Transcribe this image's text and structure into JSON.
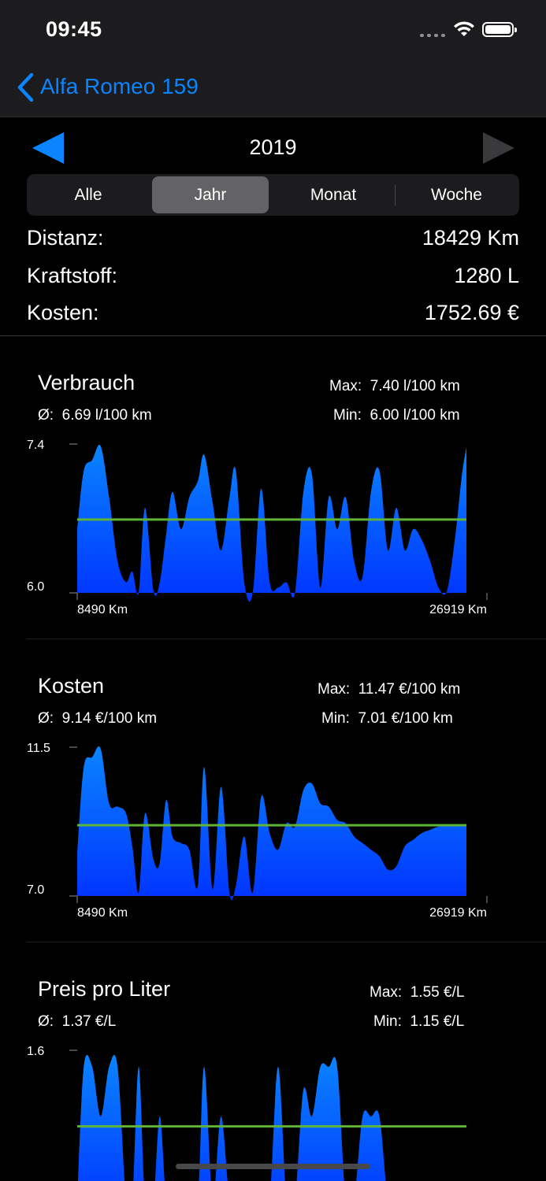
{
  "status_bar": {
    "time": "09:45"
  },
  "nav": {
    "back_label": "Alfa Romeo 159"
  },
  "period": {
    "year": "2019"
  },
  "segments": [
    "Alle",
    "Jahr",
    "Monat",
    "Woche"
  ],
  "selected_segment": "Jahr",
  "summary": {
    "distance_label": "Distanz:",
    "distance_value": "18429 Km",
    "fuel_label": "Kraftstoff:",
    "fuel_value": "1280 L",
    "cost_label": "Kosten:",
    "cost_value": "1752.69 €"
  },
  "colors": {
    "accent": "#0a84ff",
    "area_top": "#0a84ff",
    "area_bottom": "#0033ff",
    "average_line": "#5fb336"
  },
  "chart_data": [
    {
      "type": "area",
      "title": "Verbrauch",
      "avg_label": "Ø:",
      "avg_value": "6.69 l/100 km",
      "max_label": "Max:",
      "max_value": "7.40 l/100 km",
      "min_label": "Min:",
      "min_value": "6.00 l/100 km",
      "ymax_label": "7.4",
      "ymin_label": "6.0",
      "xmin_label": "8490 Km",
      "xmax_label": "26919 Km",
      "ylim": [
        6.0,
        7.4
      ],
      "xlim": [
        8490,
        26919
      ],
      "average": 6.69,
      "x": [
        8490,
        8800,
        9200,
        9600,
        10000,
        10400,
        10800,
        11100,
        11400,
        11700,
        12100,
        12400,
        12700,
        13000,
        13400,
        13800,
        14200,
        14500,
        14900,
        15300,
        15700,
        16000,
        16400,
        16800,
        17200,
        17600,
        18000,
        18400,
        18800,
        19200,
        19600,
        20000,
        20400,
        20800,
        21200,
        21600,
        22000,
        22400,
        22800,
        23200,
        23600,
        24000,
        24400,
        24800,
        25200,
        25600,
        26000,
        26400,
        26700,
        26919
      ],
      "values": [
        6.6,
        7.15,
        7.25,
        7.38,
        6.9,
        6.3,
        6.1,
        6.2,
        6.0,
        6.8,
        6.02,
        6.1,
        6.55,
        6.95,
        6.6,
        6.9,
        7.05,
        7.3,
        6.85,
        6.4,
        6.9,
        7.15,
        6.1,
        6.0,
        6.98,
        6.1,
        6.05,
        6.1,
        6.0,
        6.95,
        7.12,
        6.05,
        6.9,
        6.6,
        6.9,
        6.3,
        6.15,
        6.95,
        7.15,
        6.4,
        6.8,
        6.4,
        6.6,
        6.5,
        6.3,
        6.05,
        6.02,
        6.55,
        7.1,
        7.37
      ]
    },
    {
      "type": "area",
      "title": "Kosten",
      "avg_label": "Ø:",
      "avg_value": "9.14 €/100 km",
      "max_label": "Max:",
      "max_value": "11.47 €/100 km",
      "min_label": "Min:",
      "min_value": "7.01 €/100 km",
      "ymax_label": "11.5",
      "ymin_label": "7.0",
      "xmin_label": "8490 Km",
      "xmax_label": "26919 Km",
      "ylim": [
        7.0,
        11.5
      ],
      "xlim": [
        8490,
        26919
      ],
      "average": 9.14,
      "x": [
        8490,
        8800,
        9200,
        9600,
        10000,
        10400,
        10800,
        11100,
        11400,
        11700,
        12100,
        12400,
        12700,
        13000,
        13400,
        13800,
        14200,
        14500,
        14900,
        15300,
        15700,
        16000,
        16400,
        16800,
        17200,
        17600,
        18000,
        18400,
        18800,
        19200,
        19600,
        20000,
        20400,
        20800,
        21200,
        21600,
        22000,
        22400,
        22800,
        23200,
        23600,
        24000,
        24400,
        24800,
        25200,
        25600,
        26000,
        26400,
        26700,
        26919
      ],
      "values": [
        8.3,
        10.9,
        11.2,
        11.45,
        9.8,
        9.7,
        9.5,
        8.5,
        7.1,
        9.5,
        8.1,
        8.0,
        9.9,
        8.8,
        8.6,
        8.4,
        7.3,
        10.9,
        7.2,
        10.3,
        7.1,
        7.3,
        8.8,
        7.1,
        10.0,
        8.9,
        8.4,
        9.2,
        9.1,
        10.2,
        10.4,
        9.8,
        9.7,
        9.3,
        9.2,
        8.8,
        8.6,
        8.4,
        8.2,
        7.8,
        7.9,
        8.5,
        8.7,
        8.9,
        9.0,
        9.1,
        9.12,
        9.13,
        9.14,
        9.15
      ]
    },
    {
      "type": "area",
      "title": "Preis pro Liter",
      "avg_label": "Ø:",
      "avg_value": "1.37 €/L",
      "max_label": "Max:",
      "max_value": "1.55 €/L",
      "min_label": "Min:",
      "min_value": "1.15 €/L",
      "ymax_label": "1.6",
      "ylim": [
        1.15,
        1.6
      ],
      "xlim": [
        8490,
        26919
      ],
      "average": 1.37,
      "x": [
        8490,
        8800,
        9200,
        9600,
        10000,
        10400,
        10800,
        11100,
        11400,
        11700,
        12100,
        12400,
        12700,
        13000,
        13400,
        13800,
        14200,
        14500,
        14900,
        15300,
        15700,
        16000,
        16400,
        16800,
        17200,
        17600,
        18000,
        18400,
        18800,
        19200,
        19600,
        20000,
        20400,
        20800,
        21200,
        21600,
        22000,
        22400,
        22800,
        23200,
        23600,
        24000,
        24400,
        24800,
        25200,
        25600,
        26000,
        26400,
        26700,
        26919
      ],
      "values": [
        1.15,
        1.55,
        1.55,
        1.4,
        1.55,
        1.55,
        1.15,
        1.15,
        1.55,
        1.15,
        1.15,
        1.4,
        1.15,
        1.15,
        1.15,
        1.15,
        1.15,
        1.55,
        1.15,
        1.4,
        1.15,
        1.15,
        1.15,
        1.15,
        1.15,
        1.15,
        1.55,
        1.15,
        1.15,
        1.48,
        1.4,
        1.55,
        1.55,
        1.55,
        1.15,
        1.15,
        1.4,
        1.4,
        1.4,
        1.15,
        1.15,
        1.15,
        1.15,
        1.15,
        1.15,
        1.15,
        1.15,
        1.15,
        1.15,
        1.15
      ]
    }
  ]
}
